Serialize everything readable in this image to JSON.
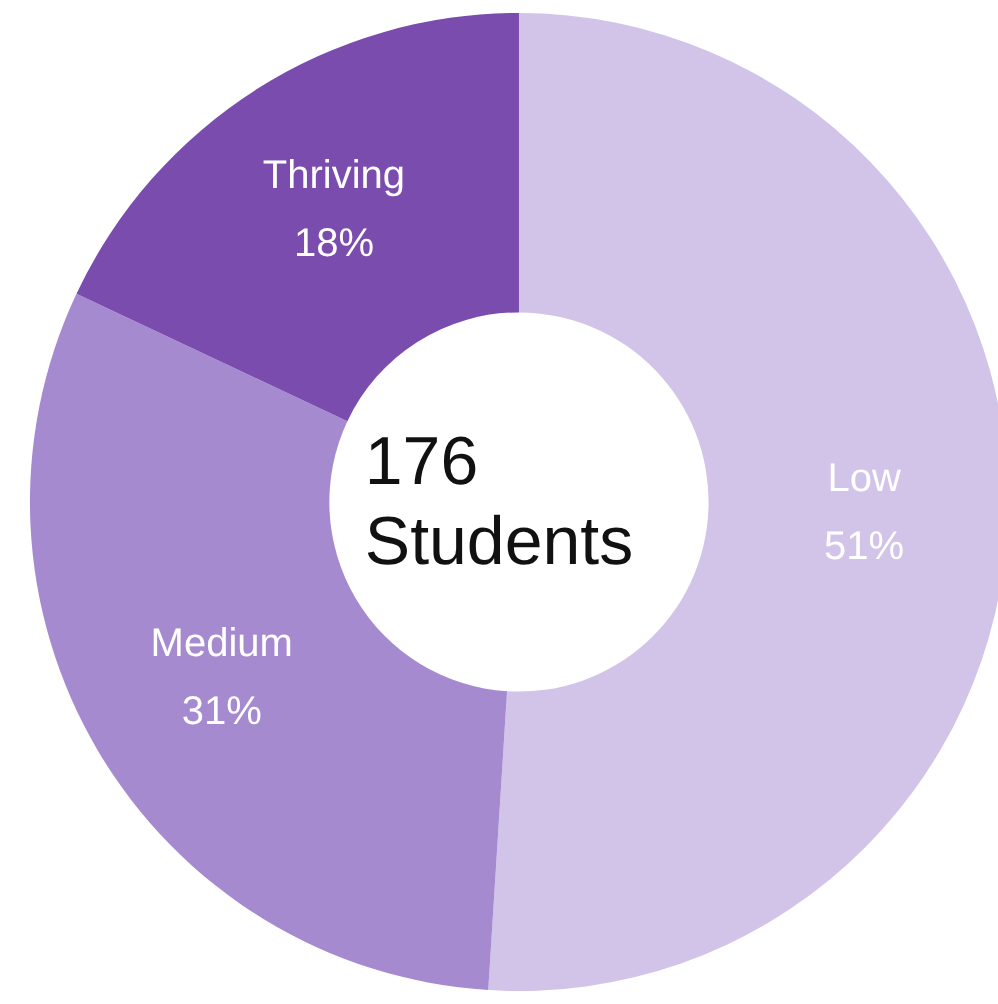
{
  "chart_data": {
    "type": "donut",
    "categories": [
      "Low",
      "Medium",
      "Thriving"
    ],
    "values": [
      51,
      31,
      18
    ],
    "colors": [
      "#d2c3e8",
      "#a68ad0",
      "#7a4cae"
    ],
    "value_labels": [
      "51%",
      "31%",
      "18%"
    ],
    "annotations": [
      "176\nStudents"
    ],
    "legend": false
  }
}
